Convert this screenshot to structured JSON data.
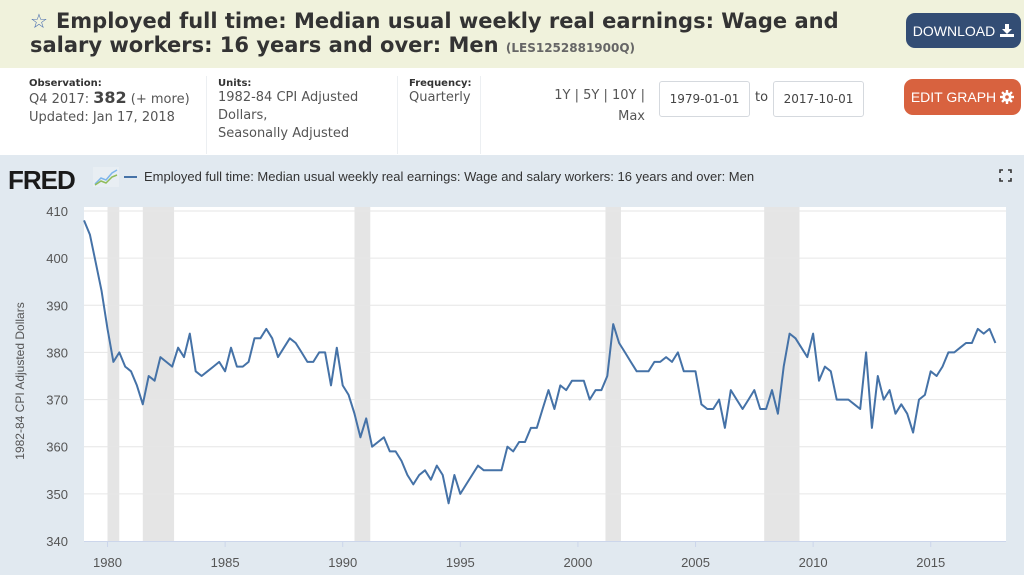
{
  "header": {
    "title": "Employed full time: Median usual weekly real earnings: Wage and salary workers: 16 years and over: Men",
    "series_id": "(LES1252881900Q)",
    "star_icon": "star-outline-icon",
    "download_label": "DOWNLOAD",
    "download_icon": "download-icon"
  },
  "meta": {
    "observation_label": "Observation:",
    "observation_period": "Q4 2017:",
    "observation_value": "382",
    "observation_more": "(+ more)",
    "updated": "Updated: Jan 17, 2018",
    "units_label": "Units:",
    "units_line1": "1982-84 CPI Adjusted",
    "units_line2": "Dollars,",
    "units_line3": "Seasonally Adjusted",
    "frequency_label": "Frequency:",
    "frequency_value": "Quarterly"
  },
  "range": {
    "btn_1y": "1Y",
    "btn_5y": "5Y",
    "btn_10y": "10Y",
    "btn_max": "Max",
    "sep": "|",
    "start_date": "1979-01-01",
    "to_label": "to",
    "end_date": "2017-10-01"
  },
  "edit_graph_label": "EDIT GRAPH",
  "graph": {
    "logo_text": "FRED",
    "legend_label": "Employed full time: Median usual weekly real earnings: Wage and salary workers: 16 years and over: Men",
    "series_color": "#4572a7",
    "recession_color": "#e5e5e5"
  },
  "chart_data": {
    "type": "line",
    "title": "Employed full time: Median usual weekly real earnings: Wage and salary workers: 16 years and over: Men",
    "xlabel": "",
    "ylabel": "1982-84 CPI Adjusted Dollars",
    "ylim": [
      340,
      410
    ],
    "xlim": [
      1979.0,
      2017.75
    ],
    "y_ticks": [
      340,
      350,
      360,
      370,
      380,
      390,
      400,
      410
    ],
    "y_tick_labels": [
      "340",
      "350",
      "360",
      "370",
      "380",
      "390",
      "400",
      "410"
    ],
    "x_ticks": [
      1980,
      1985,
      1990,
      1995,
      2000,
      2005,
      2010,
      2015
    ],
    "x_tick_labels": [
      "1980",
      "1985",
      "1990",
      "1995",
      "2000",
      "2005",
      "2010",
      "2015"
    ],
    "grid": true,
    "recessions": [
      [
        1980.0,
        1980.5
      ],
      [
        1981.5,
        1982.83
      ],
      [
        1990.5,
        1991.17
      ],
      [
        2001.17,
        2001.83
      ],
      [
        2007.92,
        2009.42
      ]
    ],
    "series": [
      {
        "name": "LES1252881900Q",
        "start": "1979-Q1",
        "frequency": "quarterly",
        "values": [
          408,
          405,
          399,
          393,
          385,
          378,
          380,
          377,
          376,
          373,
          369,
          375,
          374,
          379,
          378,
          377,
          381,
          379,
          384,
          376,
          375,
          376,
          377,
          378,
          376,
          381,
          377,
          377,
          378,
          383,
          383,
          385,
          383,
          379,
          381,
          383,
          382,
          380,
          378,
          378,
          380,
          380,
          373,
          381,
          373,
          371,
          367,
          362,
          366,
          360,
          361,
          362,
          359,
          359,
          357,
          354,
          352,
          354,
          355,
          353,
          356,
          354,
          348,
          354,
          350,
          352,
          354,
          356,
          355,
          355,
          355,
          355,
          360,
          359,
          361,
          361,
          364,
          364,
          368,
          372,
          368,
          373,
          372,
          374,
          374,
          374,
          370,
          372,
          372,
          375,
          386,
          382,
          380,
          378,
          376,
          376,
          376,
          378,
          378,
          379,
          378,
          380,
          376,
          376,
          376,
          369,
          368,
          368,
          370,
          364,
          372,
          370,
          368,
          370,
          372,
          368,
          368,
          372,
          367,
          377,
          384,
          383,
          381,
          379,
          384,
          374,
          377,
          376,
          370,
          370,
          370,
          369,
          368,
          380,
          364,
          375,
          370,
          372,
          367,
          369,
          367,
          363,
          370,
          371,
          376,
          375,
          377,
          380,
          380,
          381,
          382,
          382,
          385,
          384,
          385,
          382
        ]
      }
    ]
  }
}
